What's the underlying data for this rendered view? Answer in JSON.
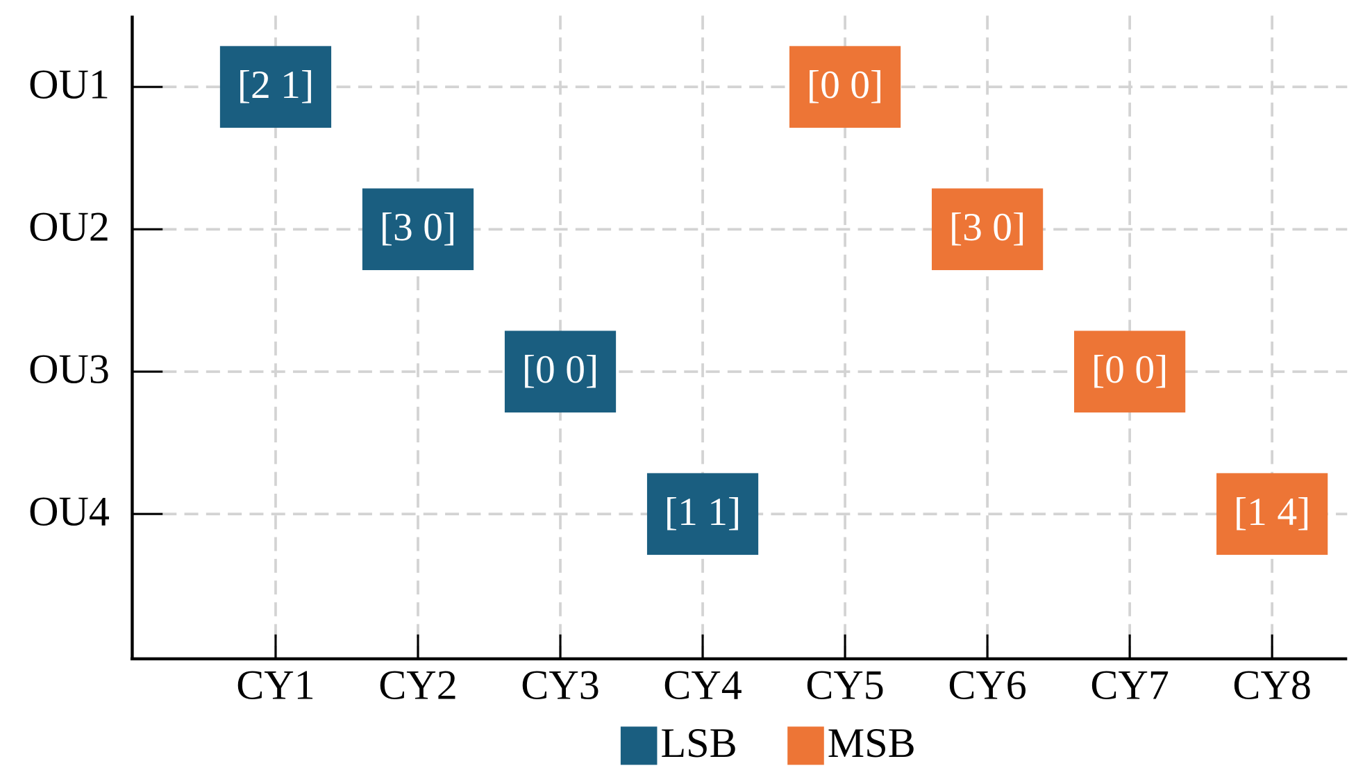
{
  "chart_data": {
    "type": "schedule",
    "x_categories": [
      "CY1",
      "CY2",
      "CY3",
      "CY4",
      "CY5",
      "CY6",
      "CY7",
      "CY8"
    ],
    "y_categories": [
      "OU1",
      "OU2",
      "OU3",
      "OU4"
    ],
    "grid": true,
    "legend": "bottom",
    "series": [
      {
        "name": "LSB",
        "color": "#1a5e80",
        "cells": [
          {
            "col": "CY1",
            "row": "OU1",
            "label": "[2 1]"
          },
          {
            "col": "CY2",
            "row": "OU2",
            "label": "[3 0]"
          },
          {
            "col": "CY3",
            "row": "OU3",
            "label": "[0 0]"
          },
          {
            "col": "CY4",
            "row": "OU4",
            "label": "[1 1]"
          }
        ]
      },
      {
        "name": "MSB",
        "color": "#ed7536",
        "cells": [
          {
            "col": "CY5",
            "row": "OU1",
            "label": "[0 0]"
          },
          {
            "col": "CY6",
            "row": "OU2",
            "label": "[3 0]"
          },
          {
            "col": "CY7",
            "row": "OU3",
            "label": "[0 0]"
          },
          {
            "col": "CY8",
            "row": "OU4",
            "label": "[1 4]"
          }
        ]
      }
    ]
  }
}
